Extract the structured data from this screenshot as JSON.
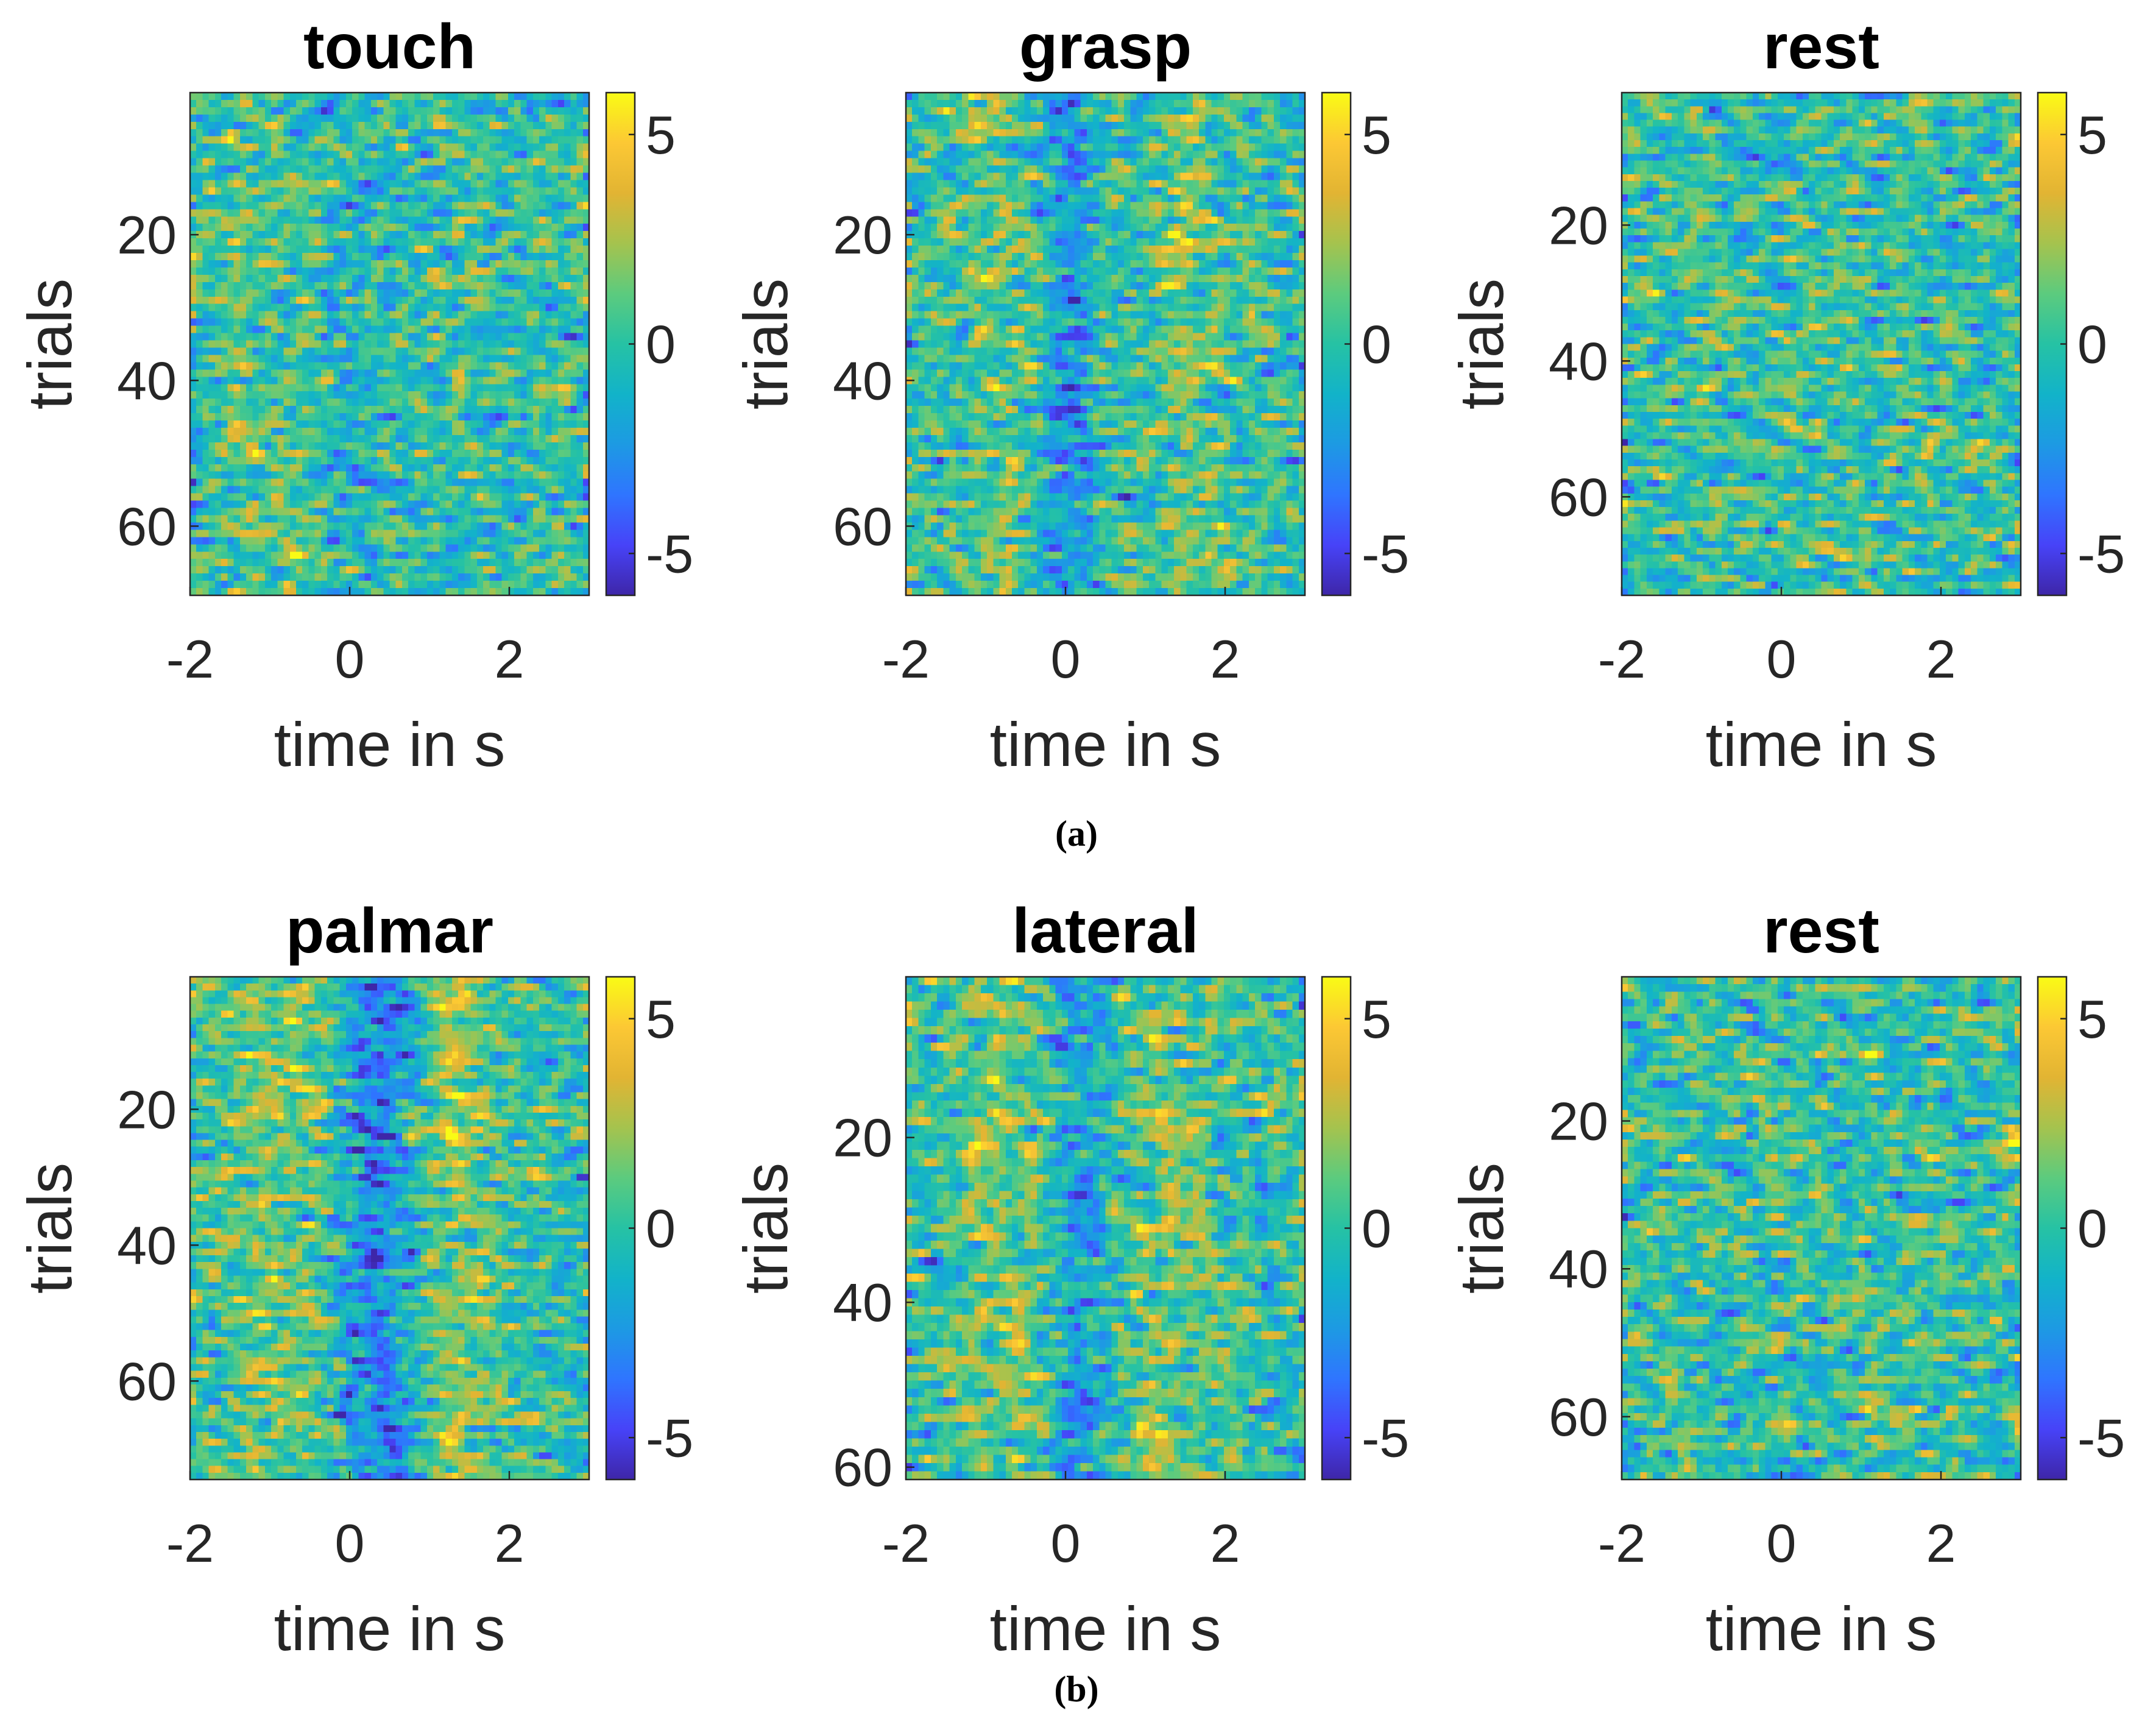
{
  "figure_captions": [
    "(a)",
    "(b)"
  ],
  "colormap": {
    "name": "parula",
    "stops": [
      "#3e26a8",
      "#4743f8",
      "#2f75ff",
      "#1d9ae3",
      "#12b3c9",
      "#26c2a4",
      "#5ccb7e",
      "#a5c34e",
      "#e2b433",
      "#fcc834",
      "#f9fb15"
    ]
  },
  "chart_data": [
    {
      "type": "heatmap",
      "panel": "a",
      "title": "touch",
      "xlabel": "time in s",
      "ylabel": "trials",
      "xlim": [
        -2,
        3
      ],
      "ylim": [
        1,
        69
      ],
      "xticks": [
        "-2",
        "0",
        "2"
      ],
      "yticks": [
        "20",
        "40",
        "60"
      ],
      "clim": [
        -6,
        6
      ],
      "colorbar_ticks": [
        "5",
        "0",
        "-5"
      ],
      "n_time_bins": 64,
      "n_trials": 69,
      "seed": 11,
      "dips": [
        {
          "t": 0.0,
          "strength": 1.0,
          "width": 0.45
        }
      ],
      "bumps": [
        {
          "t": -1.0,
          "strength": 1.0,
          "width": 0.7
        }
      ]
    },
    {
      "type": "heatmap",
      "panel": "a",
      "title": "grasp",
      "xlabel": "time in s",
      "ylabel": "trials",
      "xlim": [
        -2,
        3
      ],
      "ylim": [
        1,
        69
      ],
      "xticks": [
        "-2",
        "0",
        "2"
      ],
      "yticks": [
        "20",
        "40",
        "60"
      ],
      "clim": [
        -6,
        6
      ],
      "colorbar_ticks": [
        "5",
        "0",
        "-5"
      ],
      "n_time_bins": 64,
      "n_trials": 69,
      "seed": 23,
      "dips": [
        {
          "t": 0.0,
          "strength": 2.5,
          "width": 0.3
        }
      ],
      "bumps": [
        {
          "t": -0.9,
          "strength": 1.0,
          "width": 0.6
        },
        {
          "t": 1.6,
          "strength": 1.3,
          "width": 0.5
        }
      ]
    },
    {
      "type": "heatmap",
      "panel": "a",
      "title": "rest",
      "xlabel": "time in s",
      "ylabel": "trials",
      "xlim": [
        -2,
        3
      ],
      "ylim": [
        1,
        74
      ],
      "xticks": [
        "-2",
        "0",
        "2"
      ],
      "yticks": [
        "20",
        "40",
        "60"
      ],
      "clim": [
        -6,
        6
      ],
      "colorbar_ticks": [
        "5",
        "0",
        "-5"
      ],
      "n_time_bins": 64,
      "n_trials": 74,
      "seed": 37,
      "dips": [],
      "bumps": []
    },
    {
      "type": "heatmap",
      "panel": "b",
      "title": "palmar",
      "xlabel": "time in s",
      "ylabel": "trials",
      "xlim": [
        -2,
        3
      ],
      "ylim": [
        1,
        74
      ],
      "xticks": [
        "-2",
        "0",
        "2"
      ],
      "yticks": [
        "20",
        "40",
        "60"
      ],
      "clim": [
        -6,
        6
      ],
      "colorbar_ticks": [
        "5",
        "0",
        "-5"
      ],
      "n_time_bins": 64,
      "n_trials": 74,
      "seed": 41,
      "dips": [
        {
          "t": 0.3,
          "strength": 3.0,
          "width": 0.45
        }
      ],
      "bumps": [
        {
          "t": -1.0,
          "strength": 1.5,
          "width": 0.9
        },
        {
          "t": 1.4,
          "strength": 2.0,
          "width": 0.45
        }
      ]
    },
    {
      "type": "heatmap",
      "panel": "b",
      "title": "lateral",
      "xlabel": "time in s",
      "ylabel": "trials",
      "xlim": [
        -2,
        3
      ],
      "ylim": [
        1,
        61
      ],
      "xticks": [
        "-2",
        "0",
        "2"
      ],
      "yticks": [
        "20",
        "40",
        "60"
      ],
      "clim": [
        -6,
        6
      ],
      "colorbar_ticks": [
        "5",
        "0",
        "-5"
      ],
      "n_time_bins": 64,
      "n_trials": 61,
      "seed": 53,
      "dips": [
        {
          "t": 0.2,
          "strength": 2.5,
          "width": 0.35
        }
      ],
      "bumps": [
        {
          "t": -0.8,
          "strength": 1.5,
          "width": 0.7
        },
        {
          "t": 1.3,
          "strength": 1.2,
          "width": 0.6
        }
      ]
    },
    {
      "type": "heatmap",
      "panel": "b",
      "title": "rest",
      "xlabel": "time in s",
      "ylabel": "trials",
      "xlim": [
        -2,
        3
      ],
      "ylim": [
        1,
        68
      ],
      "xticks": [
        "-2",
        "0",
        "2"
      ],
      "yticks": [
        "20",
        "40",
        "60"
      ],
      "clim": [
        -6,
        6
      ],
      "colorbar_ticks": [
        "5",
        "0",
        "-5"
      ],
      "n_time_bins": 64,
      "n_trials": 68,
      "seed": 67,
      "dips": [],
      "bumps": []
    }
  ]
}
